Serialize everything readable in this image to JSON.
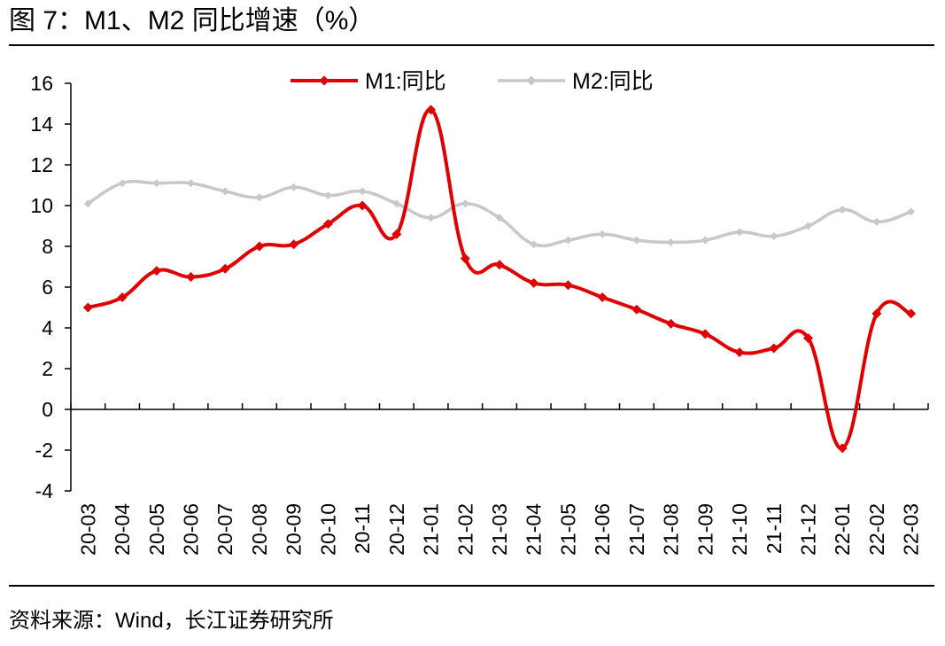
{
  "title": "图 7：M1、M2 同比增速（%）",
  "source": "资料来源：Wind，长江证券研究所",
  "chart_data": {
    "type": "line",
    "title": "M1、M2 同比增速（%）",
    "xlabel": "",
    "ylabel": "",
    "ylim": [
      -4,
      16
    ],
    "yticks": [
      "16",
      "14",
      "12",
      "10",
      "8",
      "6",
      "4",
      "2",
      "0",
      "-2",
      "-4"
    ],
    "ytick_values": [
      16,
      14,
      12,
      10,
      8,
      6,
      4,
      2,
      0,
      -2,
      -4
    ],
    "grid": false,
    "legend_position": "top",
    "categories": [
      "20-03",
      "20-04",
      "20-05",
      "20-06",
      "20-07",
      "20-08",
      "20-09",
      "20-10",
      "20-11",
      "20-12",
      "21-01",
      "21-02",
      "21-03",
      "21-04",
      "21-05",
      "21-06",
      "21-07",
      "21-08",
      "21-09",
      "21-10",
      "21-11",
      "21-12",
      "22-01",
      "22-02",
      "22-03"
    ],
    "series": [
      {
        "name": "M1:同比",
        "color": "#e00000",
        "values": [
          5.0,
          5.5,
          6.8,
          6.5,
          6.9,
          8.0,
          8.1,
          9.1,
          10.0,
          8.6,
          14.7,
          7.4,
          7.1,
          6.2,
          6.1,
          5.5,
          4.9,
          4.2,
          3.7,
          2.8,
          3.0,
          3.5,
          -1.9,
          4.7,
          4.7
        ]
      },
      {
        "name": "M2:同比",
        "color": "#c8c8c8",
        "values": [
          10.1,
          11.1,
          11.1,
          11.1,
          10.7,
          10.4,
          10.9,
          10.5,
          10.7,
          10.1,
          9.4,
          10.1,
          9.4,
          8.1,
          8.3,
          8.6,
          8.3,
          8.2,
          8.3,
          8.7,
          8.5,
          9.0,
          9.8,
          9.2,
          9.7
        ]
      }
    ]
  }
}
